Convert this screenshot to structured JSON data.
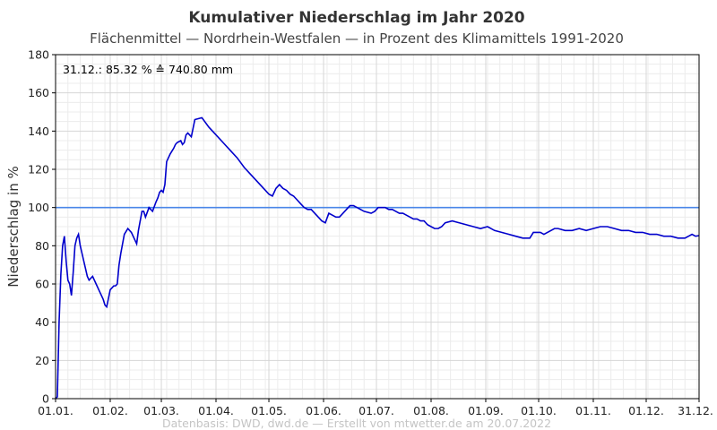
{
  "chart_data": {
    "type": "line",
    "title": "Kumulativer Niederschlag im Jahr 2020",
    "subtitle": "Flächenmittel — Nordrhein-Westfalen — in Prozent des Klimamittels 1991-2020",
    "ylabel": "Niederschlag in %",
    "xlabel": "",
    "ylim": [
      0,
      180
    ],
    "xlim": [
      1,
      366
    ],
    "yticks": [
      0,
      20,
      40,
      60,
      80,
      100,
      120,
      140,
      160,
      180
    ],
    "xticks": [
      {
        "label": "01.01.",
        "day": 1
      },
      {
        "label": "01.02.",
        "day": 32
      },
      {
        "label": "01.03.",
        "day": 61
      },
      {
        "label": "01.04.",
        "day": 92
      },
      {
        "label": "01.05.",
        "day": 122
      },
      {
        "label": "01.06.",
        "day": 153
      },
      {
        "label": "01.07.",
        "day": 183
      },
      {
        "label": "01.08.",
        "day": 214
      },
      {
        "label": "01.09.",
        "day": 245
      },
      {
        "label": "01.10.",
        "day": 275
      },
      {
        "label": "01.11.",
        "day": 306
      },
      {
        "label": "01.12.",
        "day": 336
      },
      {
        "label": "31.12.",
        "day": 366
      }
    ],
    "grid": true,
    "reference_line": {
      "value": 100,
      "color": "#4a86e8"
    },
    "annotation": "31.12.:  85.32 % ≙ 740.80 mm",
    "series": [
      {
        "color": "#0000cc",
        "x": [
          1,
          2,
          3,
          4,
          5,
          6,
          7,
          8,
          9,
          10,
          11,
          12,
          13,
          14,
          15,
          16,
          17,
          18,
          19,
          20,
          22,
          24,
          26,
          28,
          29,
          30,
          32,
          33,
          34,
          35,
          36,
          37,
          38,
          40,
          42,
          44,
          46,
          47,
          48,
          50,
          51,
          52,
          54,
          56,
          58,
          59,
          60,
          61,
          62,
          63,
          64,
          66,
          68,
          69,
          70,
          72,
          73,
          74,
          75,
          76,
          78,
          80,
          84,
          88,
          92,
          96,
          100,
          104,
          108,
          112,
          114,
          116,
          118,
          120,
          122,
          124,
          126,
          128,
          130,
          132,
          134,
          136,
          138,
          140,
          142,
          144,
          146,
          148,
          150,
          152,
          154,
          156,
          158,
          160,
          162,
          164,
          166,
          168,
          170,
          172,
          174,
          176,
          180,
          182,
          184,
          186,
          188,
          190,
          192,
          194,
          196,
          198,
          200,
          202,
          204,
          206,
          208,
          210,
          212,
          214,
          216,
          218,
          220,
          222,
          226,
          230,
          234,
          238,
          242,
          246,
          250,
          254,
          258,
          262,
          266,
          270,
          272,
          274,
          276,
          278,
          280,
          282,
          284,
          286,
          290,
          294,
          298,
          302,
          306,
          310,
          314,
          318,
          322,
          326,
          330,
          334,
          338,
          342,
          346,
          350,
          354,
          358,
          360,
          362,
          364,
          366
        ],
        "y": [
          0,
          1,
          40,
          65,
          80,
          85,
          72,
          62,
          60,
          54,
          66,
          80,
          84,
          86,
          80,
          76,
          72,
          68,
          64,
          62,
          64,
          60,
          56,
          52,
          49,
          48,
          57,
          58,
          59,
          59,
          60,
          70,
          76,
          86,
          89,
          87,
          83,
          81,
          88,
          98,
          98,
          95,
          100,
          98,
          103,
          105,
          108,
          109,
          108,
          112,
          124,
          128,
          131,
          133,
          134,
          135,
          133,
          134,
          138,
          139,
          137,
          146,
          147,
          142,
          138,
          134,
          130,
          126,
          121,
          117,
          115,
          113,
          111,
          109,
          107,
          106,
          110,
          112,
          110,
          109,
          107,
          106,
          104,
          102,
          100,
          99,
          99,
          97,
          95,
          93,
          92,
          97,
          96,
          95,
          95,
          97,
          99,
          101,
          101,
          100,
          99,
          98,
          97,
          98,
          100,
          100,
          100,
          99,
          99,
          98,
          97,
          97,
          96,
          95,
          94,
          94,
          93,
          93,
          91,
          90,
          89,
          89,
          90,
          92,
          93,
          92,
          91,
          90,
          89,
          90,
          88,
          87,
          86,
          85,
          84,
          84,
          87,
          87,
          87,
          86,
          87,
          88,
          89,
          89,
          88,
          88,
          89,
          88,
          89,
          90,
          90,
          89,
          88,
          88,
          87,
          87,
          86,
          86,
          85,
          85,
          84,
          84,
          85,
          86,
          85,
          85.32
        ]
      }
    ]
  },
  "footer": "Datenbasis: DWD, dwd.de — Erstellt von mtwetter.de am 20.07.2022"
}
